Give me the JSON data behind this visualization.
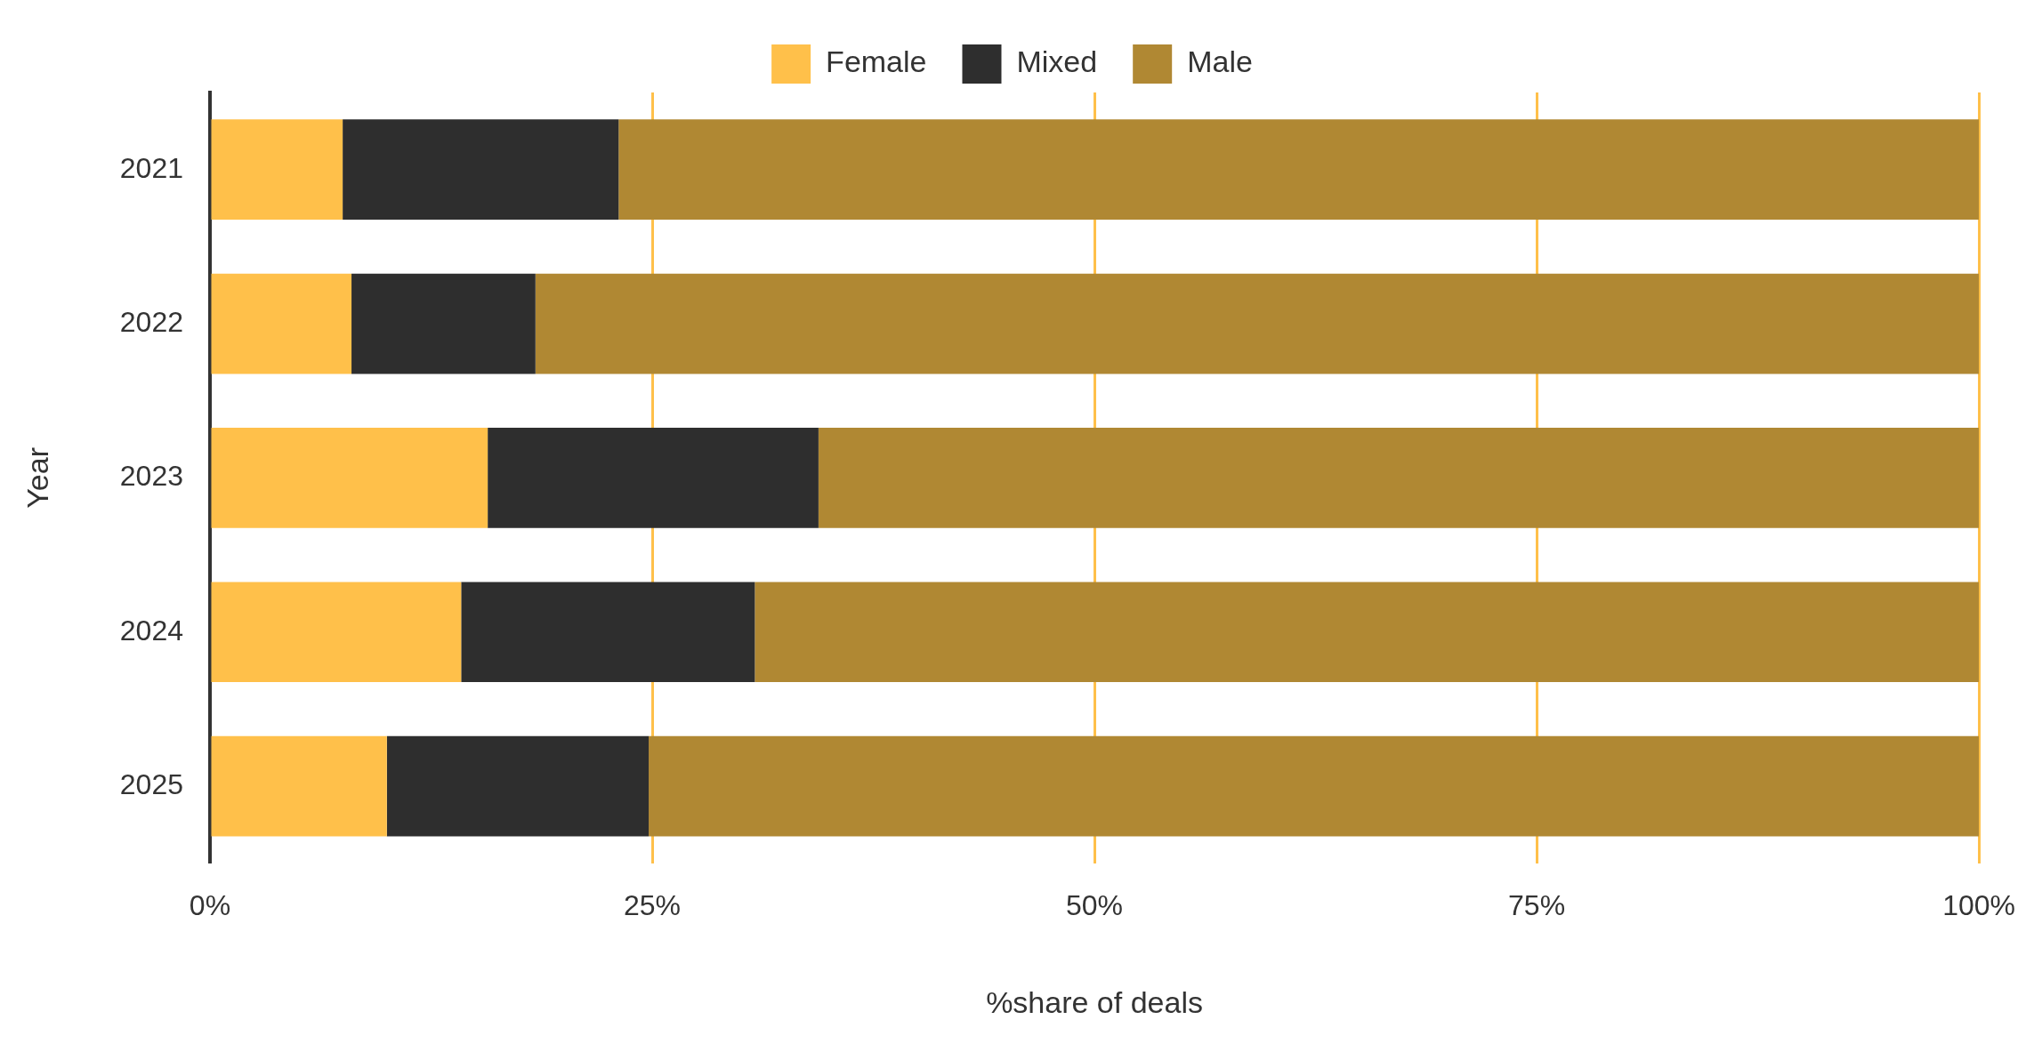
{
  "chart_data": {
    "type": "bar",
    "orientation": "horizontal",
    "stacked": true,
    "xlabel": "%share of deals",
    "ylabel": "Year",
    "categories": [
      "2021",
      "2022",
      "2023",
      "2024",
      "2025"
    ],
    "series": [
      {
        "name": "Female",
        "color": "#ffc04a",
        "values": [
          7.5,
          8.0,
          15.7,
          14.2,
          10.0
        ]
      },
      {
        "name": "Mixed",
        "color": "#2e2e2e",
        "values": [
          15.6,
          10.4,
          18.7,
          16.6,
          14.8
        ]
      },
      {
        "name": "Male",
        "color": "#b08833",
        "values": [
          76.9,
          81.6,
          65.6,
          69.2,
          75.2
        ]
      }
    ],
    "xlim": [
      0,
      100
    ],
    "xticks": [
      {
        "value": 0,
        "label": "0%"
      },
      {
        "value": 25,
        "label": "25%"
      },
      {
        "value": 50,
        "label": "50%"
      },
      {
        "value": 75,
        "label": "75%"
      },
      {
        "value": 100,
        "label": "100%"
      }
    ],
    "grid": "x",
    "legend": "top"
  }
}
